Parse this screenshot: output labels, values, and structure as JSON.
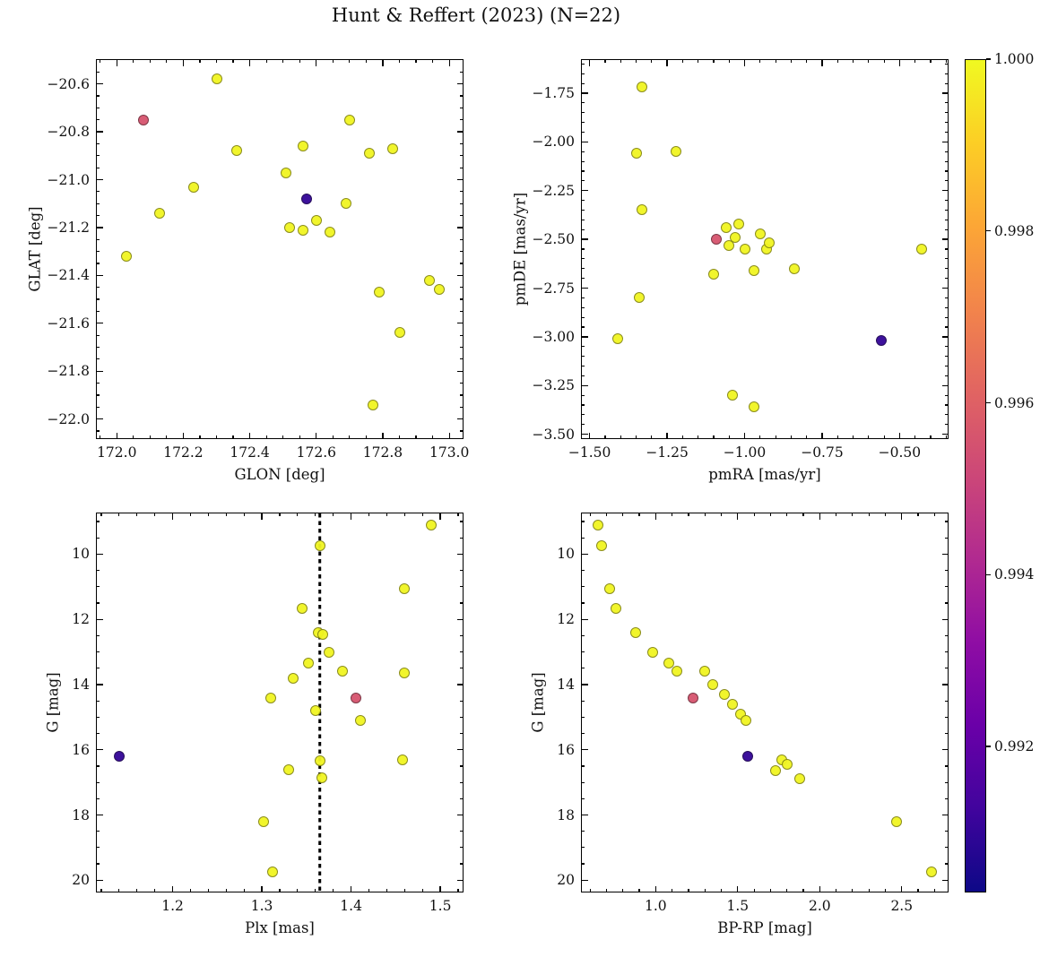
{
  "title": "Hunt & Reffert (2023) (N=22)",
  "colorbar": {
    "colormap": "plasma",
    "vmin": 0.9903,
    "vmax": 1.0,
    "labels": [
      "1.000",
      "0.998",
      "0.996",
      "0.994",
      "0.992"
    ],
    "label_values": [
      1.0,
      0.998,
      0.996,
      0.994,
      0.992
    ]
  },
  "chart_data": [
    {
      "id": "glat-vs-glon",
      "type": "scatter",
      "xlabel": "GLON [deg]",
      "ylabel": "GLAT [deg]",
      "xlim": [
        171.94,
        173.04
      ],
      "ylim": [
        -22.08,
        -20.5
      ],
      "xticks": [
        172.0,
        172.2,
        172.4,
        172.6,
        172.8,
        173.0
      ],
      "xtick_labels": [
        "172.0",
        "172.2",
        "172.4",
        "172.6",
        "172.8",
        "173.0"
      ],
      "yticks": [
        -20.6,
        -20.8,
        -21.0,
        -21.2,
        -21.4,
        -21.6,
        -21.8,
        -22.0
      ],
      "ytick_labels": [
        "−20.6",
        "−20.8",
        "−21.0",
        "−21.2",
        "−21.4",
        "−21.6",
        "−21.8",
        "−22.0"
      ],
      "xminor_step": 0.05,
      "yminor_step": 0.05,
      "points": [
        [
          172.3,
          -20.58,
          0.9999
        ],
        [
          172.08,
          -20.75,
          0.9956
        ],
        [
          172.7,
          -20.75,
          0.9999
        ],
        [
          172.36,
          -20.88,
          0.9999
        ],
        [
          172.56,
          -20.86,
          0.9999
        ],
        [
          172.76,
          -20.89,
          0.9999
        ],
        [
          172.83,
          -20.87,
          0.9999
        ],
        [
          172.51,
          -20.97,
          0.9999
        ],
        [
          172.23,
          -21.03,
          0.9999
        ],
        [
          172.57,
          -21.08,
          0.991
        ],
        [
          172.69,
          -21.1,
          0.9999
        ],
        [
          172.13,
          -21.14,
          0.9999
        ],
        [
          172.52,
          -21.2,
          0.9999
        ],
        [
          172.56,
          -21.21,
          0.9999
        ],
        [
          172.6,
          -21.17,
          0.9999
        ],
        [
          172.64,
          -21.22,
          0.9999
        ],
        [
          172.03,
          -21.32,
          0.9999
        ],
        [
          172.94,
          -21.42,
          0.9999
        ],
        [
          172.97,
          -21.46,
          0.9999
        ],
        [
          172.79,
          -21.47,
          0.9999
        ],
        [
          172.85,
          -21.64,
          0.9999
        ],
        [
          172.77,
          -21.94,
          0.9999
        ]
      ]
    },
    {
      "id": "pmde-vs-pmra",
      "type": "scatter",
      "xlabel": "pmRA [mas/yr]",
      "ylabel": "pmDE [mas/yr]",
      "xlim": [
        -1.525,
        -0.345
      ],
      "ylim": [
        -3.52,
        -1.58
      ],
      "xticks": [
        -1.5,
        -1.25,
        -1.0,
        -0.75,
        -0.5
      ],
      "xtick_labels": [
        "−1.50",
        "−1.25",
        "−1.00",
        "−0.75",
        "−0.50"
      ],
      "yticks": [
        -1.75,
        -2.0,
        -2.25,
        -2.5,
        -2.75,
        -3.0,
        -3.25,
        -3.5
      ],
      "ytick_labels": [
        "−1.75",
        "−2.00",
        "−2.25",
        "−2.50",
        "−2.75",
        "−3.00",
        "−3.25",
        "−3.50"
      ],
      "xminor_step": 0.05,
      "yminor_step": 0.05,
      "points": [
        [
          -1.33,
          -1.72,
          0.9999
        ],
        [
          -1.35,
          -2.06,
          0.9999
        ],
        [
          -1.22,
          -2.05,
          0.9999
        ],
        [
          -1.33,
          -2.35,
          0.9999
        ],
        [
          -1.06,
          -2.44,
          0.9999
        ],
        [
          -1.02,
          -2.42,
          0.9999
        ],
        [
          -1.09,
          -2.5,
          0.9956
        ],
        [
          -1.05,
          -2.53,
          0.9999
        ],
        [
          -1.03,
          -2.49,
          0.9999
        ],
        [
          -1.0,
          -2.55,
          0.9999
        ],
        [
          -0.95,
          -2.47,
          0.9999
        ],
        [
          -0.93,
          -2.55,
          0.9999
        ],
        [
          -0.92,
          -2.52,
          0.9999
        ],
        [
          -1.1,
          -2.68,
          0.9999
        ],
        [
          -0.97,
          -2.66,
          0.9999
        ],
        [
          -0.84,
          -2.65,
          0.9999
        ],
        [
          -0.43,
          -2.55,
          0.9999
        ],
        [
          -1.34,
          -2.8,
          0.9999
        ],
        [
          -1.41,
          -3.01,
          0.9999
        ],
        [
          -0.56,
          -3.02,
          0.991
        ],
        [
          -1.04,
          -3.3,
          0.9999
        ],
        [
          -0.97,
          -3.36,
          0.9999
        ]
      ]
    },
    {
      "id": "g-vs-plx",
      "type": "scatter",
      "xlabel": "Plx [mas]",
      "ylabel": "G [mag]",
      "xlim": [
        1.115,
        1.525
      ],
      "ylim": [
        20.35,
        8.75
      ],
      "xticks": [
        1.2,
        1.3,
        1.4,
        1.5
      ],
      "xtick_labels": [
        "1.2",
        "1.3",
        "1.4",
        "1.5"
      ],
      "yticks": [
        10,
        12,
        14,
        16,
        18,
        20
      ],
      "ytick_labels": [
        "10",
        "12",
        "14",
        "16",
        "18",
        "20"
      ],
      "xminor_step": 0.02,
      "yminor_step": 0.5,
      "vline": 1.365,
      "points": [
        [
          1.49,
          9.1,
          0.9999
        ],
        [
          1.365,
          9.75,
          0.9999
        ],
        [
          1.46,
          11.05,
          0.9999
        ],
        [
          1.345,
          11.65,
          0.9999
        ],
        [
          1.363,
          12.4,
          0.9999
        ],
        [
          1.368,
          12.45,
          0.9999
        ],
        [
          1.375,
          13.0,
          0.9999
        ],
        [
          1.352,
          13.35,
          0.9999
        ],
        [
          1.39,
          13.6,
          0.9999
        ],
        [
          1.46,
          13.65,
          0.9999
        ],
        [
          1.335,
          13.8,
          0.9999
        ],
        [
          1.31,
          14.4,
          0.9999
        ],
        [
          1.405,
          14.4,
          0.9956
        ],
        [
          1.36,
          14.8,
          0.9999
        ],
        [
          1.41,
          15.1,
          0.9999
        ],
        [
          1.14,
          16.2,
          0.991
        ],
        [
          1.365,
          16.35,
          0.9999
        ],
        [
          1.458,
          16.3,
          0.9999
        ],
        [
          1.33,
          16.6,
          0.9999
        ],
        [
          1.367,
          16.85,
          0.9999
        ],
        [
          1.302,
          18.2,
          0.9999
        ],
        [
          1.312,
          19.75,
          0.9999
        ]
      ]
    },
    {
      "id": "g-vs-bprp",
      "type": "scatter",
      "xlabel": "BP-RP [mag]",
      "ylabel": "G [mag]",
      "xlim": [
        0.55,
        2.78
      ],
      "ylim": [
        20.35,
        8.75
      ],
      "xticks": [
        1.0,
        1.5,
        2.0,
        2.5
      ],
      "xtick_labels": [
        "1.0",
        "1.5",
        "2.0",
        "2.5"
      ],
      "yticks": [
        10,
        12,
        14,
        16,
        18,
        20
      ],
      "ytick_labels": [
        "10",
        "12",
        "14",
        "16",
        "18",
        "20"
      ],
      "xminor_step": 0.1,
      "yminor_step": 0.5,
      "points": [
        [
          0.65,
          9.1,
          0.9999
        ],
        [
          0.67,
          9.75,
          0.9999
        ],
        [
          0.72,
          11.05,
          0.9999
        ],
        [
          0.76,
          11.65,
          0.9999
        ],
        [
          0.88,
          12.4,
          0.9999
        ],
        [
          0.98,
          13.0,
          0.9999
        ],
        [
          1.08,
          13.35,
          0.9999
        ],
        [
          1.13,
          13.6,
          0.9999
        ],
        [
          1.3,
          13.6,
          0.9999
        ],
        [
          1.35,
          14.0,
          0.9999
        ],
        [
          1.23,
          14.4,
          0.9956
        ],
        [
          1.42,
          14.3,
          0.9999
        ],
        [
          1.47,
          14.6,
          0.9999
        ],
        [
          1.52,
          14.9,
          0.9999
        ],
        [
          1.55,
          15.1,
          0.9999
        ],
        [
          1.56,
          16.2,
          0.991
        ],
        [
          1.77,
          16.3,
          0.9999
        ],
        [
          1.8,
          16.45,
          0.9999
        ],
        [
          1.73,
          16.65,
          0.9999
        ],
        [
          1.88,
          16.9,
          0.9999
        ],
        [
          2.47,
          18.2,
          0.9999
        ],
        [
          2.68,
          19.75,
          0.9999
        ]
      ]
    }
  ]
}
